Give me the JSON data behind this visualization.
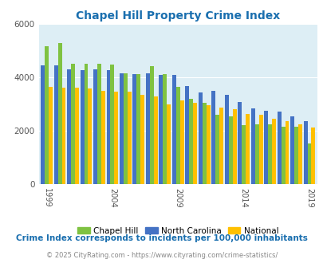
{
  "title": "Chapel Hill Property Crime Index",
  "title_color": "#1a6faf",
  "years": [
    1999,
    2000,
    2001,
    2002,
    2003,
    2004,
    2005,
    2006,
    2007,
    2008,
    2009,
    2010,
    2011,
    2012,
    2013,
    2014,
    2015,
    2016,
    2017,
    2018,
    2019
  ],
  "chapel_hill": [
    5150,
    5270,
    4500,
    4490,
    4490,
    4460,
    4150,
    4100,
    4400,
    4100,
    3650,
    3180,
    3050,
    2600,
    2540,
    2200,
    2240,
    2240,
    2160,
    2140,
    1530
  ],
  "north_carolina": [
    4450,
    4430,
    4290,
    4260,
    4290,
    4250,
    4130,
    4100,
    4130,
    4080,
    4070,
    3680,
    3420,
    3500,
    3350,
    3060,
    2820,
    2750,
    2700,
    2520,
    2360
  ],
  "national": [
    3640,
    3620,
    3600,
    3570,
    3490,
    3460,
    3450,
    3340,
    3270,
    2990,
    3130,
    3050,
    2950,
    2850,
    2790,
    2620,
    2590,
    2440,
    2360,
    2240,
    2110
  ],
  "chapel_hill_color": "#7fc241",
  "north_carolina_color": "#4472c4",
  "national_color": "#ffc000",
  "bg_color": "#ddeef5",
  "xtick_years": [
    1999,
    2004,
    2009,
    2014,
    2019
  ],
  "ytick_max": 6000,
  "ytick_step": 2000,
  "subtitle": "Crime Index corresponds to incidents per 100,000 inhabitants",
  "footer": "© 2025 CityRating.com - https://www.cityrating.com/crime-statistics/",
  "subtitle_color": "#1a6faf",
  "footer_color": "#888888"
}
